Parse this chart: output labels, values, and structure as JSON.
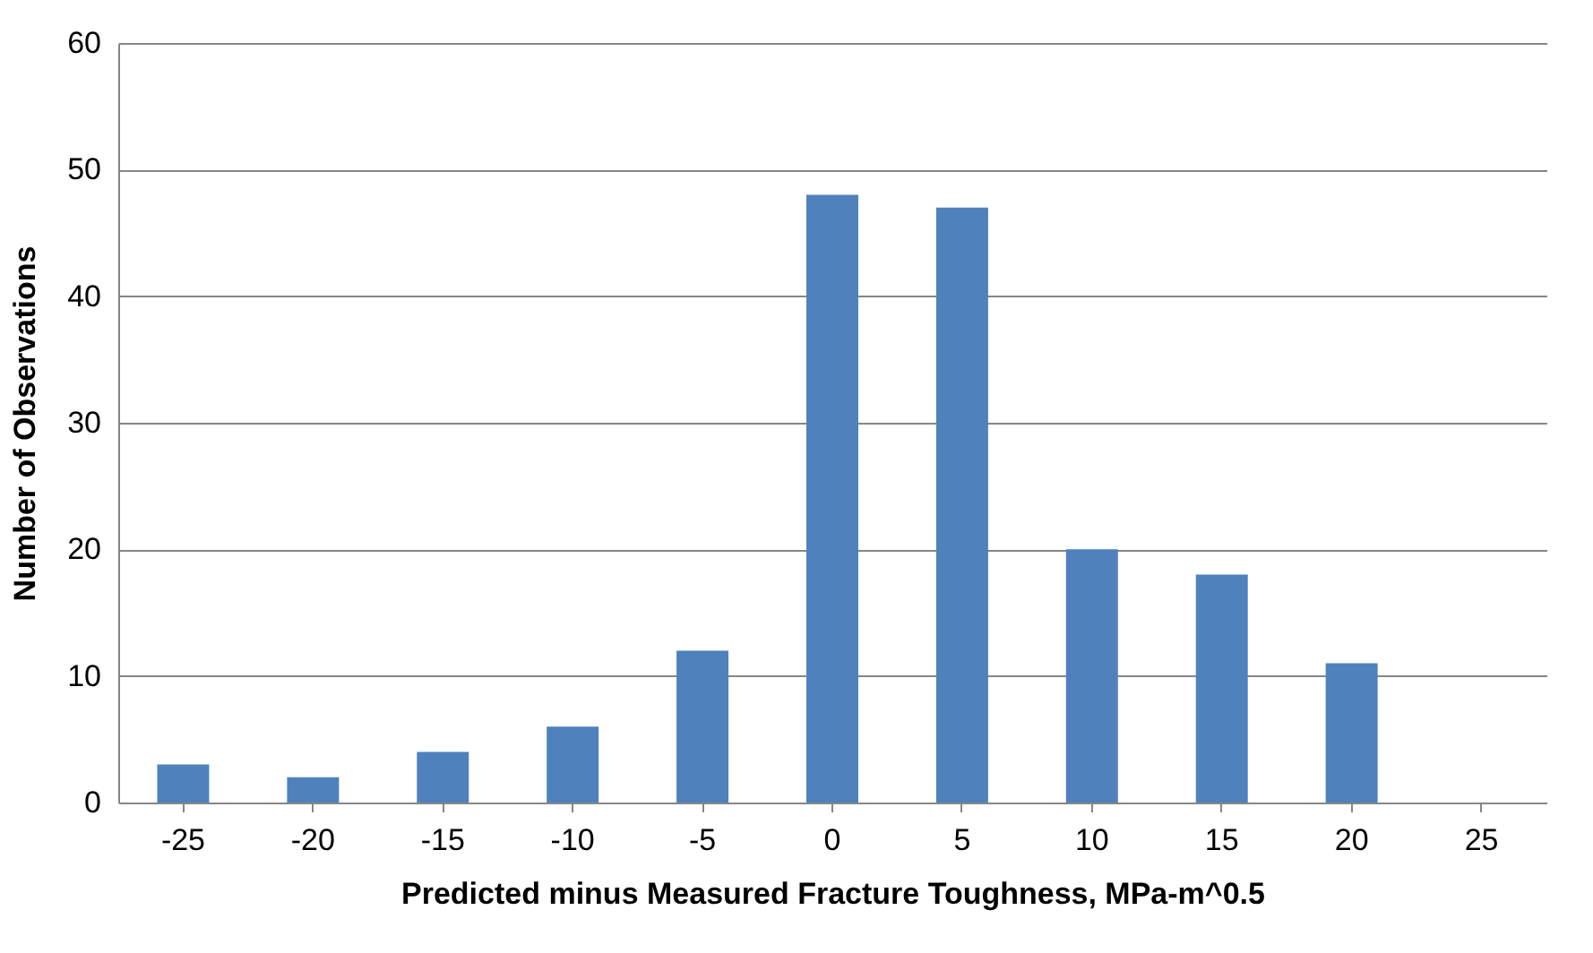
{
  "chart_data": {
    "type": "bar",
    "xlabel": "Predicted minus Measured Fracture Toughness,  MPa-m^0.5",
    "ylabel": "Number of Observations",
    "categories": [
      "-25",
      "-20",
      "-15",
      "-10",
      "-5",
      "0",
      "5",
      "10",
      "15",
      "20",
      "25"
    ],
    "values": [
      3,
      2,
      4,
      6,
      12,
      48,
      47,
      20,
      18,
      11,
      0
    ],
    "color": "#4f81bd",
    "ylim": [
      0,
      60
    ],
    "yticks": [
      0,
      10,
      20,
      30,
      40,
      50,
      60
    ],
    "grid": "y"
  }
}
